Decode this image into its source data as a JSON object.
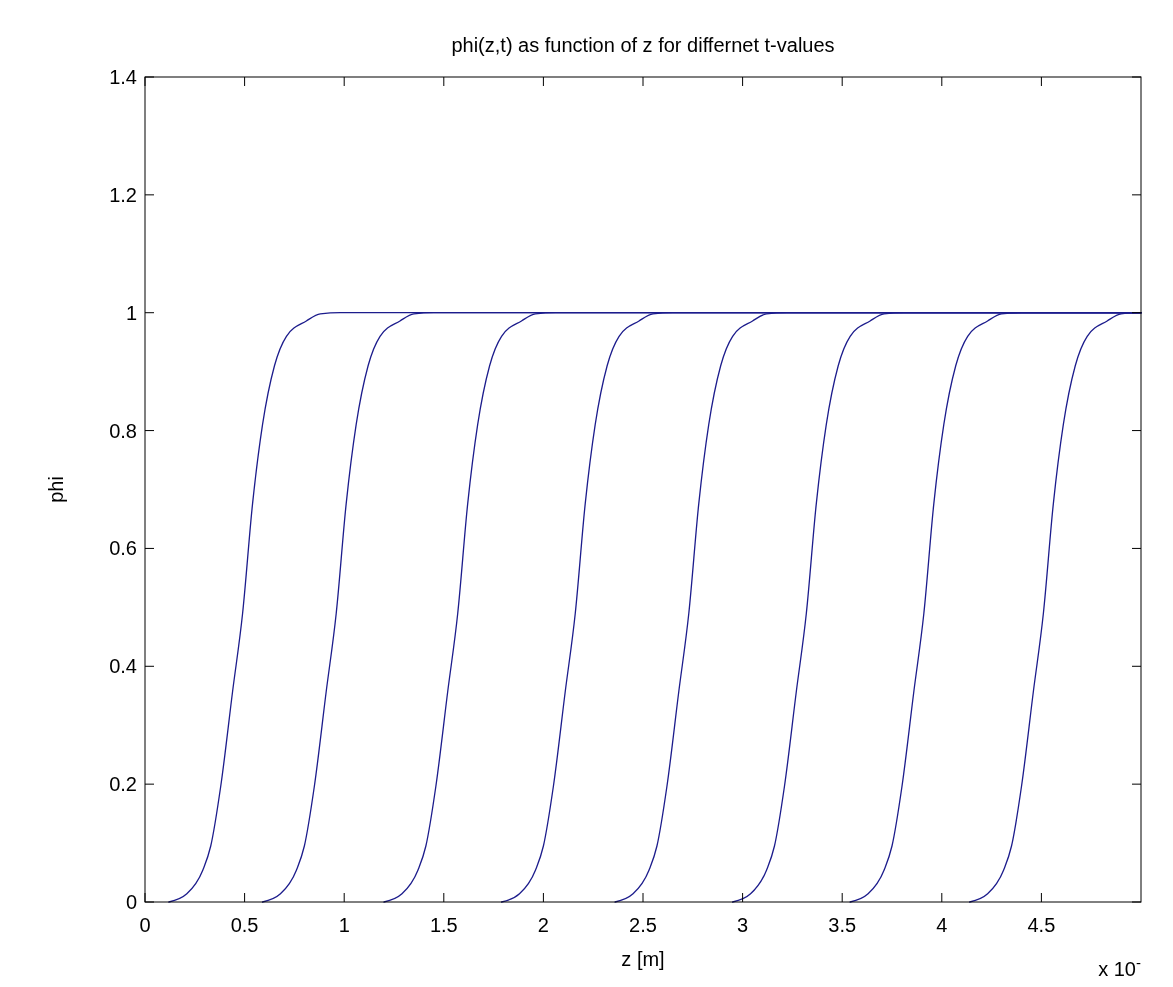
{
  "chart_data": {
    "type": "line",
    "title": "phi(z,t) as function of z for differnet t-values",
    "xlabel": "z [m]",
    "ylabel": "phi",
    "annotations": [
      "x 10$^{-}$"
    ],
    "xlim": [
      0,
      5
    ],
    "ylim": [
      0,
      1.4
    ],
    "xticks": [
      0,
      0.5,
      1,
      1.5,
      2,
      2.5,
      3,
      3.5,
      4,
      4.5
    ],
    "yticks": [
      0,
      0.2,
      0.4,
      0.6,
      0.8,
      1,
      1.2,
      1.4
    ],
    "series": [
      {
        "color": "#1c1c8c",
        "x": [
          0.12,
          0.21,
          0.29,
          0.33,
          0.38,
          0.44,
          0.49,
          0.54,
          0.59,
          0.65,
          0.71,
          0.81,
          0.88,
          0.98,
          5
        ],
        "values": [
          0,
          0.014,
          0.054,
          0.095,
          0.196,
          0.358,
          0.49,
          0.676,
          0.81,
          0.91,
          0.96,
          0.986,
          0.998,
          1,
          1
        ]
      },
      {
        "color": "#1c1c8c",
        "x": [
          0.59,
          0.68,
          0.76,
          0.8,
          0.85,
          0.91,
          0.96,
          1.01,
          1.06,
          1.12,
          1.18,
          1.28,
          1.35,
          1.45,
          5
        ],
        "values": [
          0,
          0.014,
          0.054,
          0.095,
          0.196,
          0.358,
          0.49,
          0.676,
          0.81,
          0.91,
          0.96,
          0.986,
          0.998,
          1,
          1
        ]
      },
      {
        "color": "#1c1c8c",
        "x": [
          1.2,
          1.29,
          1.37,
          1.41,
          1.46,
          1.52,
          1.57,
          1.62,
          1.67,
          1.73,
          1.79,
          1.89,
          1.96,
          2.06,
          5
        ],
        "values": [
          0,
          0.014,
          0.054,
          0.095,
          0.196,
          0.358,
          0.49,
          0.676,
          0.81,
          0.91,
          0.96,
          0.986,
          0.998,
          1,
          1
        ]
      },
      {
        "color": "#1c1c8c",
        "x": [
          1.79,
          1.88,
          1.96,
          2,
          2.05,
          2.11,
          2.16,
          2.21,
          2.26,
          2.32,
          2.38,
          2.48,
          2.55,
          2.65,
          5
        ],
        "values": [
          0,
          0.014,
          0.054,
          0.095,
          0.196,
          0.358,
          0.49,
          0.676,
          0.81,
          0.91,
          0.96,
          0.986,
          0.998,
          1,
          1
        ]
      },
      {
        "color": "#1c1c8c",
        "x": [
          2.36,
          2.45,
          2.53,
          2.57,
          2.62,
          2.68,
          2.73,
          2.78,
          2.83,
          2.89,
          2.95,
          3.05,
          3.12,
          3.22,
          5
        ],
        "values": [
          0,
          0.014,
          0.054,
          0.095,
          0.196,
          0.358,
          0.49,
          0.676,
          0.81,
          0.91,
          0.96,
          0.986,
          0.998,
          1,
          1
        ]
      },
      {
        "color": "#1c1c8c",
        "x": [
          2.95,
          3.04,
          3.12,
          3.16,
          3.21,
          3.27,
          3.32,
          3.37,
          3.42,
          3.48,
          3.54,
          3.64,
          3.71,
          3.81,
          5
        ],
        "values": [
          0,
          0.014,
          0.054,
          0.095,
          0.196,
          0.358,
          0.49,
          0.676,
          0.81,
          0.91,
          0.96,
          0.986,
          0.998,
          1,
          1
        ]
      },
      {
        "color": "#1c1c8c",
        "x": [
          3.54,
          3.63,
          3.71,
          3.75,
          3.8,
          3.86,
          3.91,
          3.96,
          4.01,
          4.07,
          4.13,
          4.23,
          4.3,
          4.4,
          5
        ],
        "values": [
          0,
          0.014,
          0.054,
          0.095,
          0.196,
          0.358,
          0.49,
          0.676,
          0.81,
          0.91,
          0.96,
          0.986,
          0.998,
          1,
          1
        ]
      },
      {
        "color": "#1c1c8c",
        "x": [
          4.14,
          4.23,
          4.31,
          4.35,
          4.4,
          4.46,
          4.51,
          4.56,
          4.61,
          4.67,
          4.73,
          4.83,
          4.9,
          5
        ],
        "values": [
          0,
          0.014,
          0.054,
          0.095,
          0.196,
          0.358,
          0.49,
          0.676,
          0.81,
          0.91,
          0.96,
          0.986,
          0.998,
          1
        ]
      }
    ]
  }
}
